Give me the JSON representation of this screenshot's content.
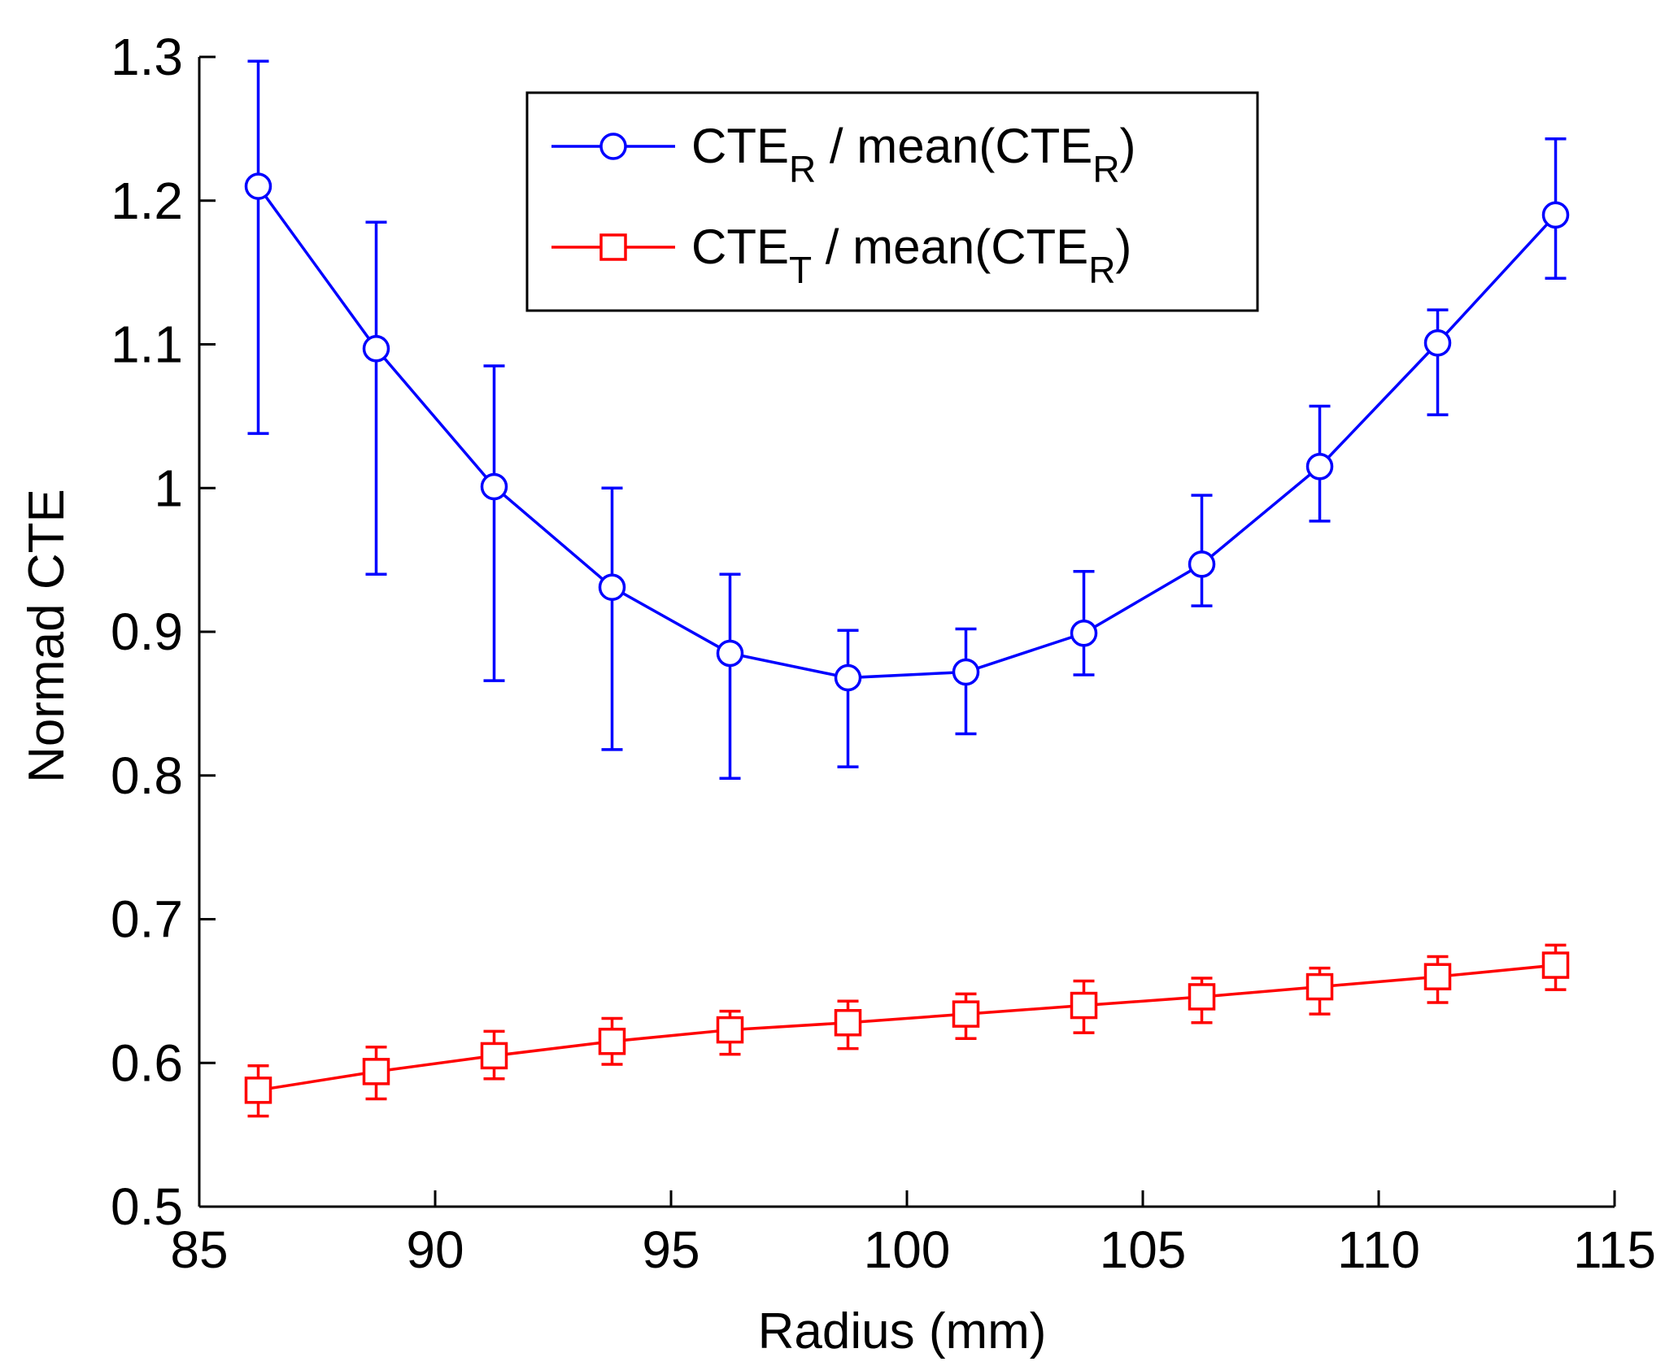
{
  "chart_data": {
    "type": "line",
    "title": "",
    "xlabel": "Radius (mm)",
    "ylabel": "Normad CTE",
    "xlim": [
      85,
      115
    ],
    "ylim": [
      0.5,
      1.3
    ],
    "xticks": [
      85,
      90,
      95,
      100,
      105,
      110,
      115
    ],
    "yticks": [
      0.5,
      0.6,
      0.7,
      0.8,
      0.9,
      1,
      1.1,
      1.2,
      1.3
    ],
    "xtick_labels": [
      "85",
      "90",
      "95",
      "100",
      "105",
      "110",
      "115"
    ],
    "ytick_labels": [
      "0.5",
      "0.6",
      "0.7",
      "0.8",
      "0.9",
      "1",
      "1.1",
      "1.2",
      "1.3"
    ],
    "grid": false,
    "legend_position": "top-center",
    "x": [
      86.25,
      88.75,
      91.25,
      93.75,
      96.25,
      98.75,
      101.25,
      103.75,
      106.25,
      108.75,
      111.25,
      113.75
    ],
    "series": [
      {
        "name_parts": [
          "CTE",
          "R",
          " / mean(CTE",
          "R",
          ")"
        ],
        "color": "#0000ff",
        "marker": "circle",
        "values": [
          1.21,
          1.097,
          1.001,
          0.931,
          0.885,
          0.868,
          0.872,
          0.899,
          0.947,
          1.015,
          1.101,
          1.19
        ],
        "err_low": [
          1.038,
          0.94,
          0.866,
          0.818,
          0.798,
          0.806,
          0.829,
          0.87,
          0.918,
          0.977,
          1.051,
          1.146
        ],
        "err_high": [
          1.297,
          1.185,
          1.085,
          1.0,
          0.94,
          0.901,
          0.902,
          0.942,
          0.995,
          1.057,
          1.124,
          1.243
        ]
      },
      {
        "name_parts": [
          "CTE",
          "T",
          " / mean(CTE",
          "R",
          ")"
        ],
        "color": "#ff0000",
        "marker": "square",
        "values": [
          0.581,
          0.594,
          0.605,
          0.615,
          0.623,
          0.628,
          0.634,
          0.64,
          0.646,
          0.653,
          0.66,
          0.668
        ],
        "err_low": [
          0.563,
          0.575,
          0.589,
          0.599,
          0.606,
          0.61,
          0.617,
          0.621,
          0.628,
          0.634,
          0.642,
          0.651
        ],
        "err_high": [
          0.598,
          0.611,
          0.622,
          0.631,
          0.636,
          0.643,
          0.648,
          0.657,
          0.659,
          0.666,
          0.674,
          0.682
        ]
      }
    ]
  }
}
